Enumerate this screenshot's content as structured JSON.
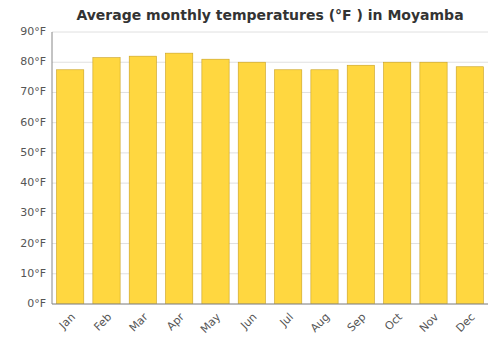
{
  "chart_data": {
    "type": "bar",
    "title": "Average monthly temperatures (°F ) in Moyamba",
    "categories": [
      "Jan",
      "Feb",
      "Mar",
      "Apr",
      "May",
      "Jun",
      "Jul",
      "Aug",
      "Sep",
      "Oct",
      "Nov",
      "Dec"
    ],
    "values": [
      77.5,
      81.5,
      82.0,
      83.0,
      81.0,
      80.0,
      77.5,
      77.5,
      79.0,
      80.0,
      80.0,
      78.5
    ],
    "color": "#FFD740",
    "ylim": [
      0,
      90
    ],
    "yticks": [
      {
        "value": 0,
        "label": "0°F"
      },
      {
        "value": 10,
        "label": "10°F"
      },
      {
        "value": 20,
        "label": "20°F"
      },
      {
        "value": 30,
        "label": "30°F"
      },
      {
        "value": 40,
        "label": "40°F"
      },
      {
        "value": 50,
        "label": "50°F"
      },
      {
        "value": 60,
        "label": "60°F"
      },
      {
        "value": 70,
        "label": "70°F"
      },
      {
        "value": 80,
        "label": "80°F"
      },
      {
        "value": 90,
        "label": "90°F"
      }
    ],
    "grid": true
  }
}
